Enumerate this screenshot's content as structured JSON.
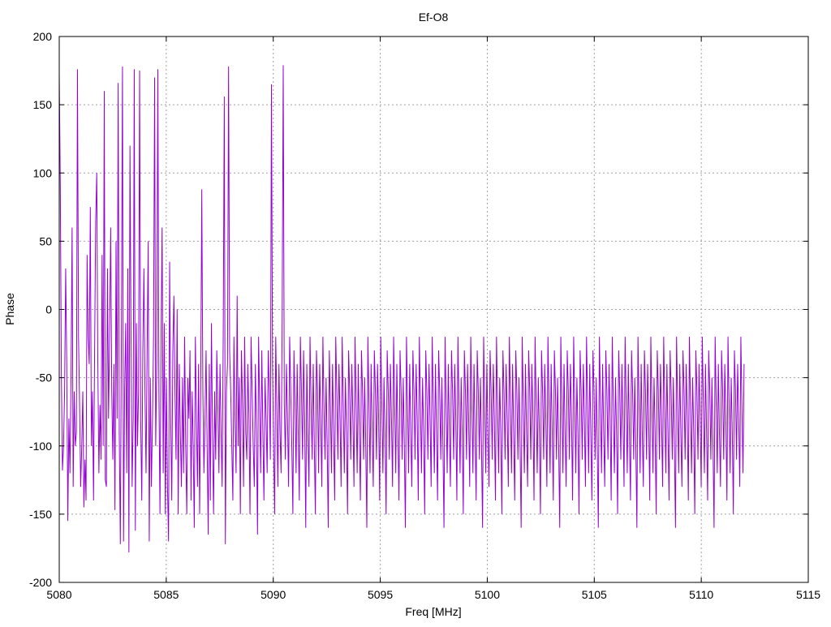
{
  "chart_data": {
    "type": "line",
    "title": "Ef-O8",
    "xlabel": "Freq [MHz]",
    "ylabel": "Phase",
    "xlim": [
      5080,
      5115
    ],
    "ylim": [
      -200,
      200
    ],
    "x_ticks": [
      "5080",
      "5085",
      "5090",
      "5095",
      "5100",
      "5105",
      "5110",
      "5115"
    ],
    "y_ticks": [
      "200",
      "150",
      "100",
      "50",
      "0",
      "-50",
      "-100",
      "-150",
      "-200"
    ],
    "grid": true,
    "legend": "none",
    "colors": {
      "line": "#9400d3",
      "grid": "#a0a0a0",
      "axis": "#000000"
    },
    "series": [
      {
        "x_start": 5080,
        "x_end": 5112,
        "sample_count": 640,
        "y": [
          172,
          90,
          -50,
          -118,
          -100,
          -60,
          30,
          -40,
          -155,
          -80,
          -120,
          -50,
          60,
          -130,
          -60,
          -100,
          -90,
          176,
          -20,
          -70,
          -130,
          -100,
          -60,
          -145,
          -110,
          -140,
          40,
          -20,
          -40,
          75,
          -100,
          -60,
          -140,
          -30,
          65,
          100,
          -40,
          -120,
          -70,
          -110,
          40,
          -100,
          160,
          -125,
          -130,
          30,
          -80,
          -20,
          60,
          -60,
          -110,
          -40,
          -147,
          50,
          -80,
          166,
          -90,
          -172,
          -20,
          178,
          -170,
          -60,
          -10,
          -120,
          30,
          -178,
          120,
          -20,
          -130,
          -80,
          176,
          -162,
          -10,
          -100,
          -60,
          175,
          -80,
          -140,
          -30,
          30,
          -60,
          -120,
          -30,
          50,
          -170,
          -50,
          -130,
          -80,
          -20,
          170,
          -100,
          -40,
          176,
          -60,
          -150,
          -20,
          60,
          -120,
          -10,
          -150,
          -50,
          -130,
          -170,
          35,
          -80,
          -140,
          -30,
          10,
          -60,
          -110,
          0,
          -150,
          -40,
          -90,
          -130,
          -50,
          -120,
          -20,
          -100,
          -150,
          -50,
          -80,
          -30,
          -140,
          -60,
          -100,
          -160,
          -20,
          -80,
          -130,
          -40,
          -150,
          -60,
          88,
          -60,
          -120,
          -80,
          -30,
          -100,
          -165,
          -40,
          -140,
          -10,
          -90,
          -150,
          -60,
          -110,
          -30,
          -70,
          -120,
          -40,
          -90,
          -130,
          -20,
          156,
          -172,
          -60,
          -40,
          178,
          -30,
          -60,
          -100,
          -140,
          -20,
          -80,
          -120,
          10,
          -100,
          -50,
          -150,
          -30,
          -70,
          -130,
          -20,
          -90,
          -110,
          -40,
          -80,
          -150,
          -20,
          -60,
          -100,
          -130,
          -40,
          -90,
          -165,
          -20,
          -70,
          -120,
          -30,
          -90,
          -140,
          -50,
          -80,
          -120,
          -30,
          -60,
          -110,
          165,
          -40,
          -100,
          -150,
          -20,
          -70,
          -130,
          -40,
          -90,
          -120,
          -10,
          179,
          -70,
          -110,
          -40,
          -80,
          -130,
          -20,
          -60,
          -100,
          -150,
          -30,
          -70,
          -120,
          -40,
          -90,
          -140,
          -20,
          -60,
          -110,
          -30,
          -80,
          -160,
          -40,
          -90,
          -130,
          -20,
          -70,
          -110,
          -40,
          -100,
          -150,
          -30,
          -60,
          -120,
          -40,
          -80,
          -130,
          -20,
          -70,
          -110,
          -50,
          -100,
          -160,
          -30,
          -70,
          -120,
          -40,
          -90,
          -140,
          -20,
          -60,
          -110,
          -40,
          -80,
          -130,
          -20,
          -70,
          -120,
          -50,
          -90,
          -150,
          -30,
          -60,
          -110,
          -40,
          -80,
          -130,
          -20,
          -70,
          -120,
          -40,
          -90,
          -140,
          -30,
          -60,
          -110,
          -50,
          -100,
          -160,
          -20,
          -70,
          -120,
          -40,
          -90,
          -130,
          -30,
          -60,
          -110,
          -40,
          -80,
          -140,
          -20,
          -70,
          -120,
          -50,
          -90,
          -150,
          -30,
          -60,
          -110,
          -40,
          -80,
          -130,
          -20,
          -70,
          -120,
          -40,
          -90,
          -140,
          -30,
          -60,
          -110,
          -50,
          -100,
          -160,
          -20,
          -70,
          -120,
          -40,
          -90,
          -130,
          -30,
          -60,
          -110,
          -40,
          -80,
          -140,
          -20,
          -70,
          -120,
          -50,
          -90,
          -150,
          -30,
          -60,
          -110,
          -40,
          -80,
          -130,
          -20,
          -70,
          -120,
          -40,
          -90,
          -140,
          -30,
          -60,
          -110,
          -50,
          -100,
          -160,
          -20,
          -70,
          -120,
          -40,
          -90,
          -130,
          -30,
          -60,
          -110,
          -40,
          -80,
          -140,
          -20,
          -70,
          -120,
          -50,
          -90,
          -150,
          -30,
          -60,
          -110,
          -40,
          -80,
          -130,
          -20,
          -70,
          -120,
          -40,
          -90,
          -140,
          -30,
          -60,
          -110,
          -50,
          -100,
          -160,
          -20,
          -70,
          -120,
          -40,
          -90,
          -130,
          -30,
          -60,
          -110,
          -40,
          -80,
          -140,
          -20,
          -70,
          -120,
          -50,
          -90,
          -150,
          -30,
          -60,
          -110,
          -40,
          -80,
          -130,
          -20,
          -70,
          -120,
          -40,
          -90,
          -140,
          -30,
          -60,
          -110,
          -50,
          -100,
          -160,
          -20,
          -70,
          -120,
          -40,
          -90,
          -130,
          -30,
          -60,
          -110,
          -40,
          -80,
          -140,
          -20,
          -70,
          -120,
          -50,
          -90,
          -150,
          -30,
          -60,
          -110,
          -40,
          -80,
          -130,
          -20,
          -70,
          -120,
          -40,
          -90,
          -140,
          -30,
          -60,
          -110,
          -50,
          -100,
          -160,
          -20,
          -70,
          -120,
          -40,
          -90,
          -130,
          -30,
          -60,
          -110,
          -40,
          -80,
          -140,
          -20,
          -70,
          -120,
          -50,
          -90,
          -150,
          -30,
          -60,
          -110,
          -40,
          -80,
          -130,
          -20,
          -70,
          -120,
          -40,
          -90,
          -140,
          -30,
          -60,
          -110,
          -50,
          -100,
          -160,
          -20,
          -70,
          -120,
          -40,
          -90,
          -130,
          -30,
          -60,
          -110,
          -40,
          -80,
          -140,
          -20,
          -70,
          -120,
          -50,
          -90,
          -150,
          -30,
          -60,
          -110,
          -40,
          -80,
          -130,
          -20,
          -70,
          -120,
          -40,
          -90,
          -140,
          -30,
          -60,
          -110,
          -50,
          -100,
          -160,
          -20,
          -70,
          -120,
          -40,
          -90,
          -130,
          -30,
          -60,
          -110,
          -40,
          -80,
          -140,
          -20,
          -70,
          -120,
          -50,
          -90,
          -150,
          -30,
          -60,
          -110,
          -40,
          -80,
          -130,
          -20,
          -70,
          -120,
          -40,
          -90,
          -140,
          -30,
          -60,
          -110,
          -50,
          -100,
          -160,
          -20,
          -70,
          -120,
          -40,
          -90,
          -130,
          -30,
          -60,
          -110,
          -40,
          -80,
          -140,
          -20,
          -70,
          -120,
          -50,
          -90,
          -150,
          -30,
          -60,
          -110,
          -40,
          -80,
          -130,
          -20,
          -70,
          -120,
          -40,
          -90,
          -140,
          -30,
          -60,
          -110,
          -50,
          -100,
          -160,
          -20,
          -70,
          -120,
          -40,
          -90,
          -130,
          -30,
          -60,
          -110,
          -40,
          -80,
          -140,
          -20,
          -70,
          -120,
          -50,
          -90,
          -150,
          -30,
          -60,
          -110,
          -40,
          -80,
          -130,
          -20,
          -70,
          -120,
          -40
        ]
      }
    ]
  }
}
